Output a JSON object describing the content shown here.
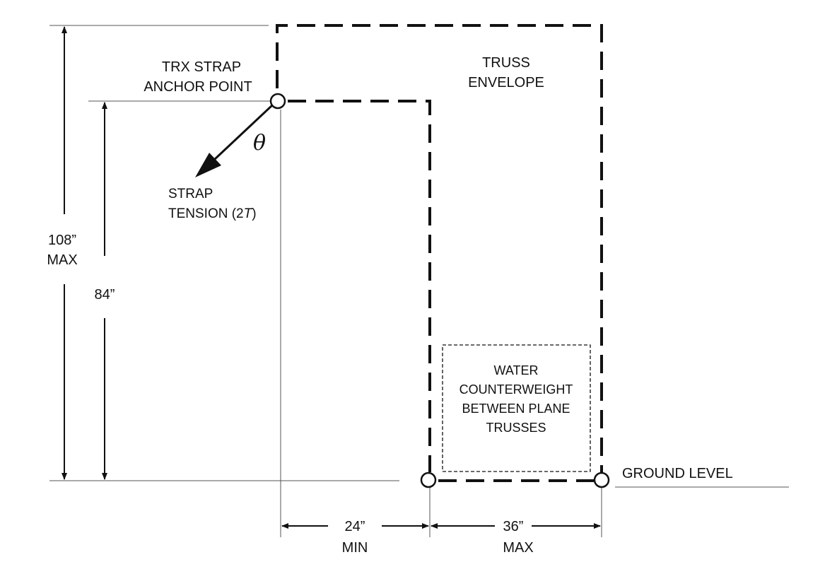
{
  "labels": {
    "anchor_line1": "TRX STRAP",
    "anchor_line2": "ANCHOR POINT",
    "truss_line1": "TRUSS",
    "truss_line2": "ENVELOPE",
    "theta": "θ",
    "strap_line1": "STRAP",
    "strap_line2_prefix": "TENSION (2",
    "strap_line2_var": "T",
    "strap_line2_suffix": ")",
    "water_line1": "WATER",
    "water_line2": "COUNTERWEIGHT",
    "water_line3": "BETWEEN PLANE",
    "water_line4": "TRUSSES",
    "ground": "GROUND LEVEL"
  },
  "dimensions": {
    "height_max_value": "108”",
    "height_max_note": "MAX",
    "height_anchor_value": "84”",
    "offset_min_value": "24”",
    "offset_min_note": "MIN",
    "base_max_value": "36”",
    "base_max_note": "MAX"
  },
  "colors": {
    "line": "#111111",
    "thin_line": "#555555"
  }
}
